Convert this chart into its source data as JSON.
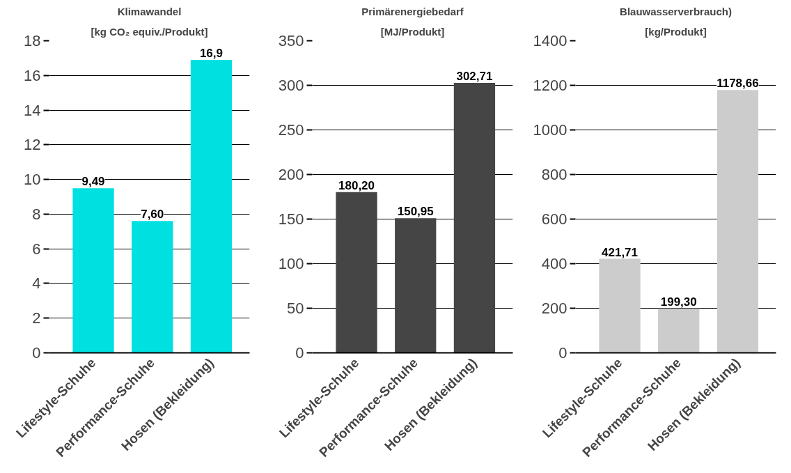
{
  "chart_data": [
    {
      "type": "bar",
      "title": "Klimawandel",
      "subtitle": "[kg CO₂ equiv./Produkt]",
      "categories": [
        "Lifestyle-Schuhe",
        "Performance-Schuhe",
        "Hosen (Bekleidung)"
      ],
      "values": [
        9.49,
        7.6,
        16.9
      ],
      "value_labels": [
        "9,49",
        "7,60",
        "16,9"
      ],
      "color": "#00e0e0",
      "ylim": [
        0,
        18
      ],
      "yticks": [
        0,
        2,
        4,
        6,
        8,
        10,
        12,
        14,
        16,
        18
      ],
      "grid": "y"
    },
    {
      "type": "bar",
      "title": "Primärenergiebedarf",
      "subtitle": "[MJ/Produkt]",
      "categories": [
        "Lifestyle-Schuhe",
        "Performance-Schuhe",
        "Hosen (Bekleidung)"
      ],
      "values": [
        180.2,
        150.95,
        302.71
      ],
      "value_labels": [
        "180,20",
        "150,95",
        "302,71"
      ],
      "color": "#454545",
      "ylim": [
        0,
        350
      ],
      "yticks": [
        0,
        50,
        100,
        150,
        200,
        250,
        300,
        350
      ],
      "grid": "y"
    },
    {
      "type": "bar",
      "title": "Blauwasserverbrauch)",
      "subtitle": "[kg/Produkt]",
      "categories": [
        "Lifestyle-Schuhe",
        "Performance-Schuhe",
        "Hosen (Bekleidung)"
      ],
      "values": [
        421.71,
        199.3,
        1178.66
      ],
      "value_labels": [
        "421,71",
        "199,30",
        "1178,66"
      ],
      "color": "#cccccc",
      "ylim": [
        0,
        1400
      ],
      "yticks": [
        0,
        200,
        400,
        600,
        800,
        1000,
        1200,
        1400
      ],
      "grid": "y"
    }
  ]
}
